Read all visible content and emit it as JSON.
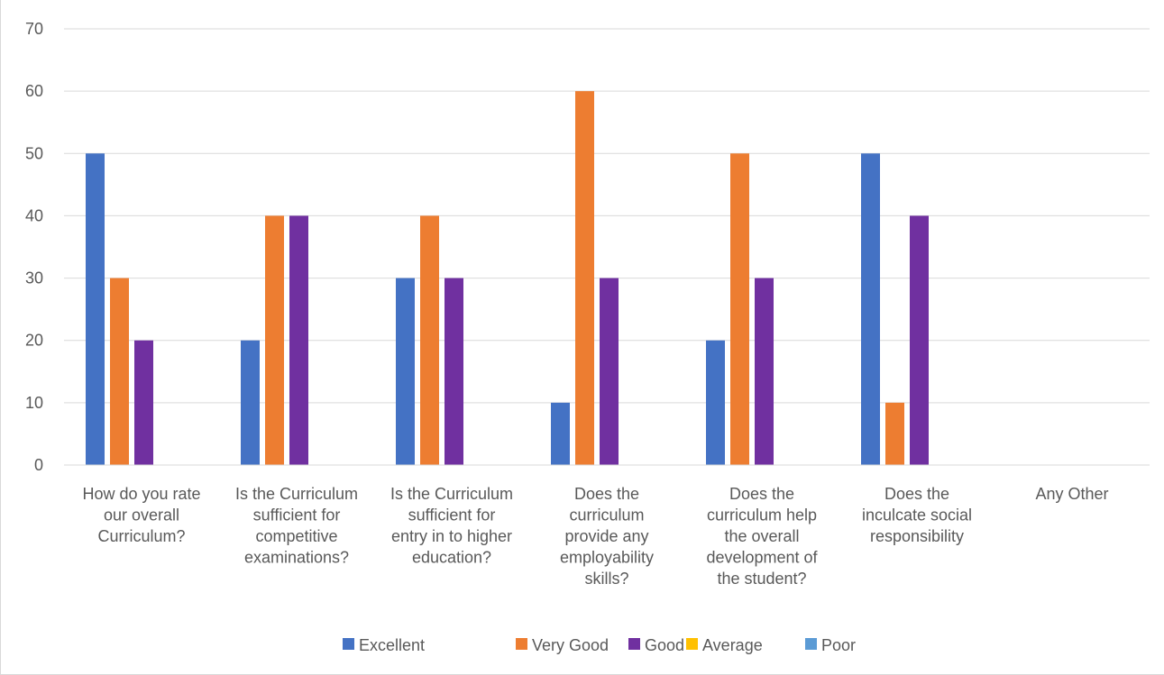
{
  "chart_data": {
    "type": "bar",
    "title": "",
    "xlabel": "",
    "ylabel": "",
    "ylim": [
      0,
      70
    ],
    "yticks": [
      0,
      10,
      20,
      30,
      40,
      50,
      60,
      70
    ],
    "grid": true,
    "legend_position": "bottom",
    "categories": [
      [
        "How do you rate",
        "our overall",
        "Curriculum?"
      ],
      [
        "Is the Curriculum",
        "sufficient for",
        "competitive",
        "examinations?"
      ],
      [
        "Is the Curriculum",
        "sufficient for",
        "entry in to higher",
        "education?"
      ],
      [
        "Does the",
        "curriculum",
        "provide any",
        "employability",
        "skills?"
      ],
      [
        "Does the",
        "curriculum help",
        "the overall",
        "development of",
        "the student?"
      ],
      [
        "Does the",
        "inculcate social",
        "responsibility"
      ],
      [
        "Any Other"
      ]
    ],
    "series": [
      {
        "name": "Excellent",
        "color": "#4472c4",
        "values": [
          50,
          20,
          30,
          10,
          20,
          50,
          0
        ]
      },
      {
        "name": "Very Good",
        "color": "#ed7d31",
        "values": [
          30,
          40,
          40,
          60,
          50,
          10,
          0
        ]
      },
      {
        "name": "Good",
        "color": "#7030a0",
        "values": [
          20,
          40,
          30,
          30,
          30,
          40,
          0
        ]
      },
      {
        "name": "Average",
        "color": "#ffc000",
        "values": [
          0,
          0,
          0,
          0,
          0,
          0,
          0
        ]
      },
      {
        "name": "Poor",
        "color": "#5b9bd5",
        "values": [
          0,
          0,
          0,
          0,
          0,
          0,
          0
        ]
      }
    ]
  }
}
